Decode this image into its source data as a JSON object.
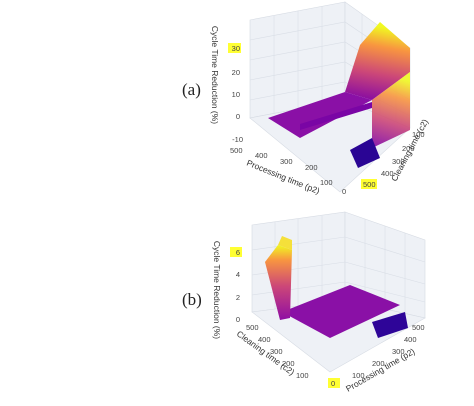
{
  "chart_data": [
    {
      "type": "surface",
      "panel_label": "(a)",
      "axes": {
        "z": {
          "title": "Cycle Time Reduction (%)",
          "ticks": [
            "30",
            "20",
            "10",
            "0",
            "-10"
          ],
          "range": [
            -10,
            30
          ],
          "highlighted_tick": "30"
        },
        "x": {
          "title": "Processing time (p2)",
          "ticks": [
            "500",
            "400",
            "300",
            "200",
            "100",
            "0"
          ]
        },
        "y": {
          "title": "Cleaning time (c2)",
          "ticks": [
            "100",
            "200",
            "300",
            "400",
            "500"
          ],
          "highlighted_tick": "500"
        }
      },
      "colorscale": [
        "#0d0887",
        "#7e03a8",
        "#cc4778",
        "#f89540",
        "#f0f921"
      ],
      "surface_description": "flat plateau near 0, rising to about 30 at high cleaning time and low processing time"
    },
    {
      "type": "surface",
      "panel_label": "(b)",
      "axes": {
        "z": {
          "title": "Cycle Time Reduction (%)",
          "ticks": [
            "6",
            "4",
            "2",
            "0"
          ],
          "range": [
            0,
            6
          ],
          "highlighted_tick": "6"
        },
        "y": {
          "title": "Cleaning time (c2)",
          "ticks": [
            "500",
            "400",
            "300",
            "200",
            "100",
            "0"
          ],
          "highlighted_tick": "0"
        },
        "x": {
          "title": "Processing time (p2)",
          "ticks": [
            "100",
            "200",
            "300",
            "400",
            "500"
          ]
        }
      },
      "colorscale": [
        "#0d0887",
        "#7e03a8",
        "#cc4778",
        "#f89540",
        "#f0f921"
      ],
      "surface_description": "flat plateau near 0 with a spike up to about 6 at low processing time"
    }
  ]
}
